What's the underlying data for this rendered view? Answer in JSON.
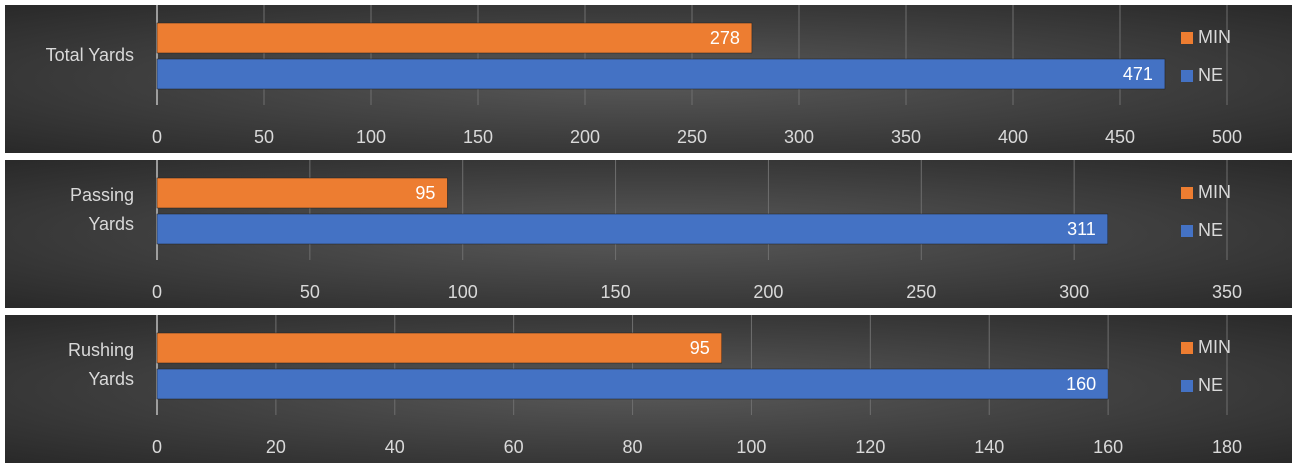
{
  "chart_data": [
    {
      "type": "bar",
      "orientation": "horizontal",
      "categories": [
        "Total Yards"
      ],
      "series": [
        {
          "name": "MIN",
          "color": "#ed7d31",
          "values": [
            278
          ]
        },
        {
          "name": "NE",
          "color": "#4472c4",
          "values": [
            471
          ]
        }
      ],
      "xlim": [
        0,
        500
      ],
      "xticks": [
        0,
        50,
        100,
        150,
        200,
        250,
        300,
        350,
        400,
        450,
        500
      ],
      "grid": true,
      "legend": "right"
    },
    {
      "type": "bar",
      "orientation": "horizontal",
      "categories": [
        "Passing Yards"
      ],
      "series": [
        {
          "name": "MIN",
          "color": "#ed7d31",
          "values": [
            95
          ]
        },
        {
          "name": "NE",
          "color": "#4472c4",
          "values": [
            311
          ]
        }
      ],
      "xlim": [
        0,
        350
      ],
      "xticks": [
        0,
        50,
        100,
        150,
        200,
        250,
        300,
        350
      ],
      "grid": true,
      "legend": "right"
    },
    {
      "type": "bar",
      "orientation": "horizontal",
      "categories": [
        "Rushing Yards"
      ],
      "series": [
        {
          "name": "MIN",
          "color": "#ed7d31",
          "values": [
            95
          ]
        },
        {
          "name": "NE",
          "color": "#4472c4",
          "values": [
            160
          ]
        }
      ],
      "xlim": [
        0,
        180
      ],
      "xticks": [
        0,
        20,
        40,
        60,
        80,
        100,
        120,
        140,
        160,
        180
      ],
      "grid": true,
      "legend": "right"
    }
  ]
}
